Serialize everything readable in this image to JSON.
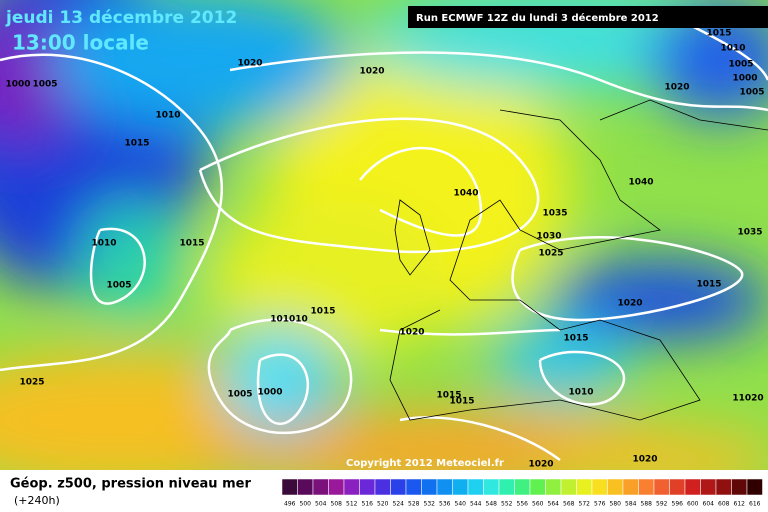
{
  "header": {
    "date": "jeudi 13 décembre 2012",
    "time": "13:00 locale"
  },
  "run_info": "Run ECMWF 12Z du lundi 3 décembre 2012",
  "copyright": "Copyright 2012 Meteociel.fr",
  "legend": {
    "title": "Géop. z500, pression niveau mer",
    "lead": "(+240h)"
  },
  "isobar_labels": [
    "1000",
    "1005",
    "1020",
    "1020",
    "1010",
    "1015",
    "1010",
    "1015",
    "1005",
    "1040",
    "1035",
    "1030",
    "1025",
    "1040",
    "1035",
    "1015",
    "1020",
    "1015",
    "1010",
    "101010",
    "1015",
    "1020",
    "1005",
    "1000",
    "1025",
    "1015",
    "1015",
    "1020",
    "1020",
    "11020",
    "1020",
    "1015",
    "1010",
    "1005",
    "1000",
    "1005"
  ],
  "colorbar": {
    "labels": [
      "496",
      "500",
      "504",
      "508",
      "512",
      "516",
      "520",
      "524",
      "528",
      "532",
      "536",
      "540",
      "544",
      "548",
      "552",
      "556",
      "560",
      "564",
      "568",
      "572",
      "576",
      "580",
      "584",
      "588",
      "592",
      "596",
      "600",
      "604",
      "608",
      "612",
      "616"
    ],
    "colors": [
      "#3a0a3a",
      "#5a0a5a",
      "#7a107a",
      "#9a189a",
      "#8a20c0",
      "#6a28d8",
      "#4a30e0",
      "#2a40e8",
      "#1a58f0",
      "#1070f0",
      "#1090f0",
      "#10b0f0",
      "#20d0f0",
      "#30e8e0",
      "#30f0b0",
      "#40f080",
      "#60f050",
      "#90f040",
      "#c0f030",
      "#e8f020",
      "#f8e020",
      "#f8c020",
      "#f8a028",
      "#f88030",
      "#f06030",
      "#e04028",
      "#d02020",
      "#b01818",
      "#901010",
      "#600808",
      "#300000"
    ]
  }
}
